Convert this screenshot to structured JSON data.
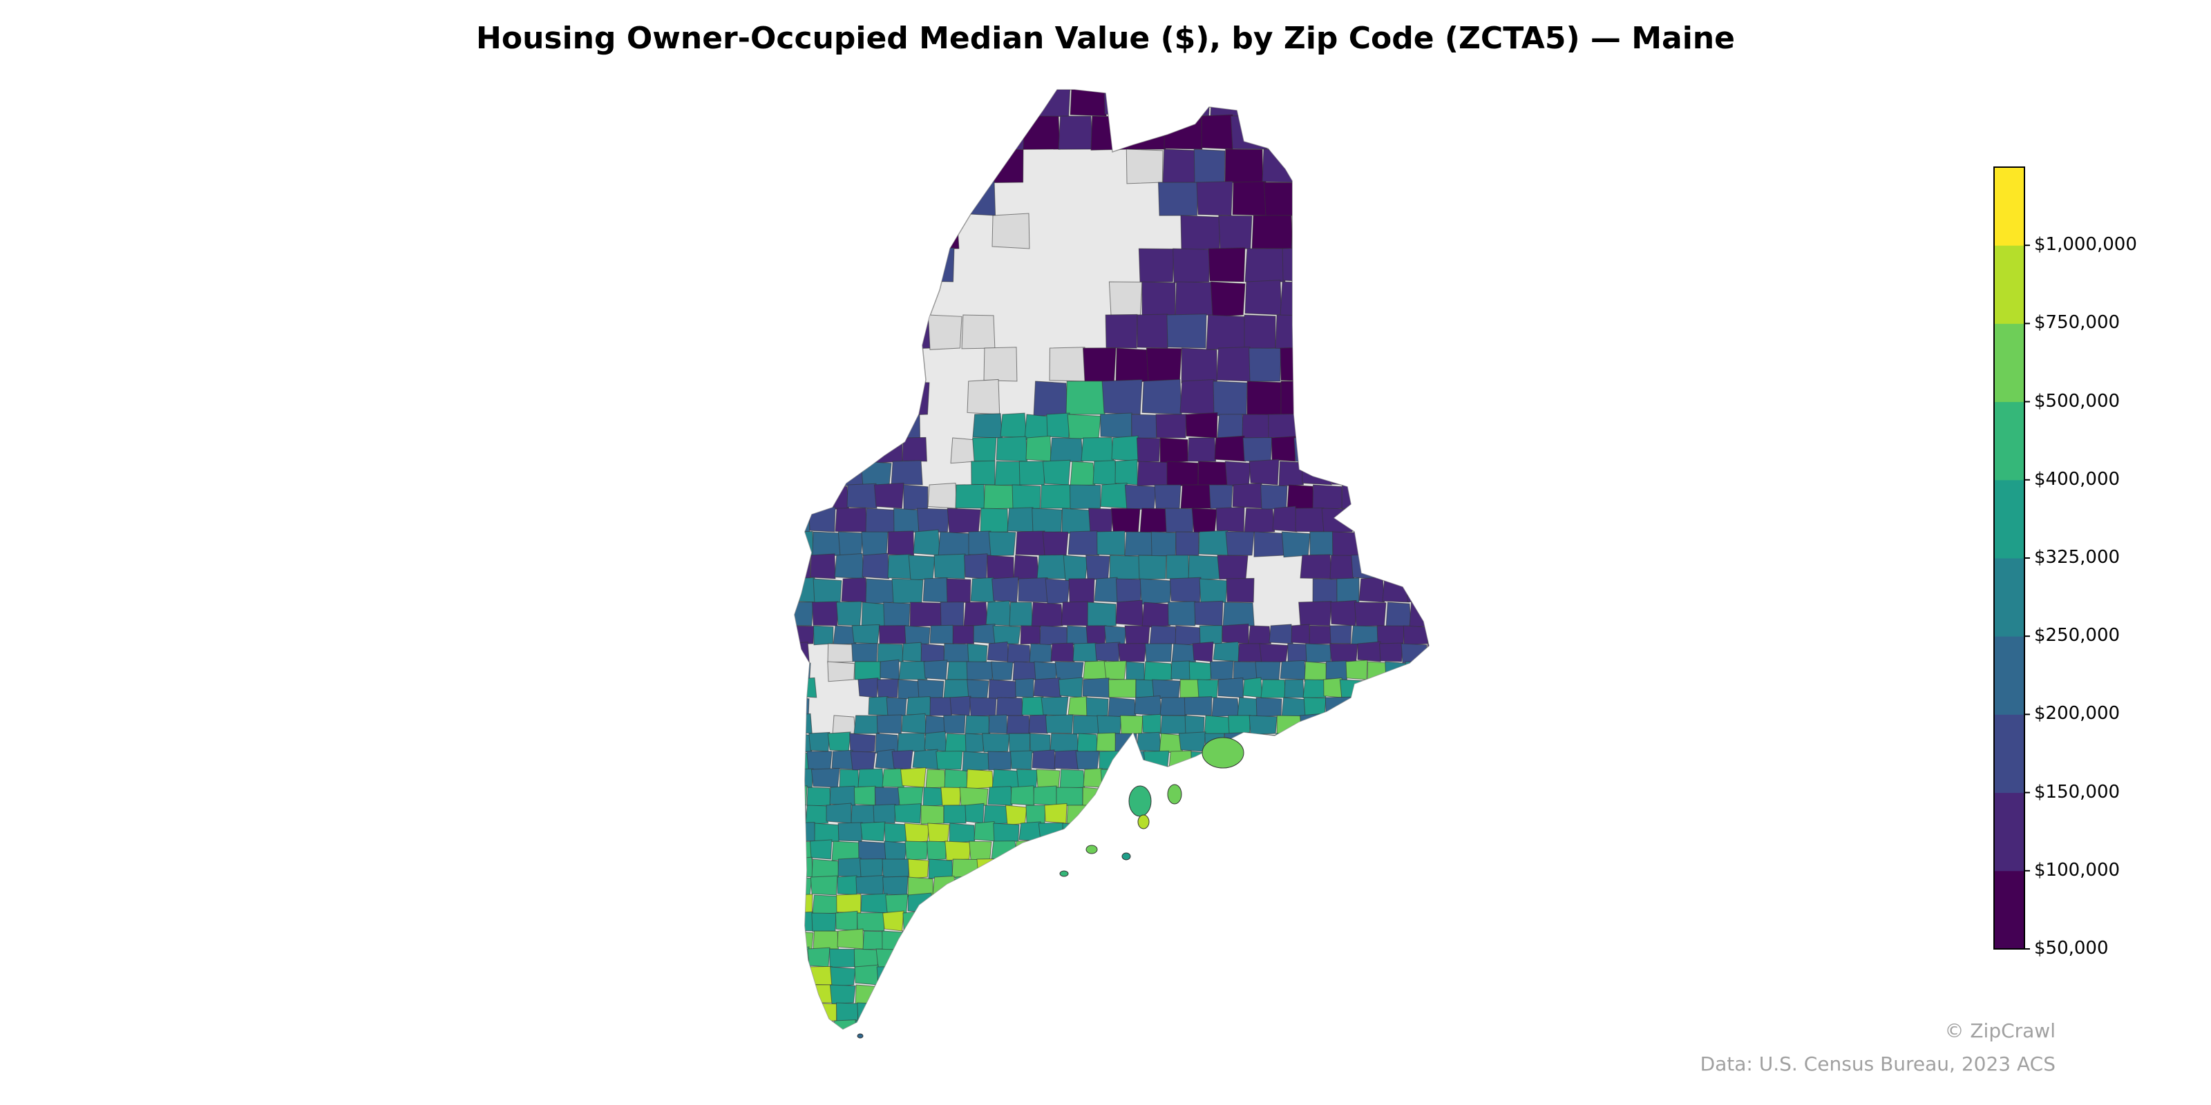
{
  "title": "Housing Owner-Occupied Median Value ($), by Zip Code (ZCTA5) — Maine",
  "credit": "© ZipCrawl",
  "source": "Data: U.S. Census Bureau, 2023 ACS",
  "colors": {
    "no_data": "#d9d9d9",
    "state_fill": "#e8e8e8",
    "border": "#333333"
  },
  "chart_data": {
    "type": "heatmap",
    "map_subject": "Maine",
    "legend": {
      "type": "stepped colorbar",
      "placement": "right",
      "ticks": [
        "$50,000",
        "$100,000",
        "$150,000",
        "$200,000",
        "$250,000",
        "$325,000",
        "$400,000",
        "$500,000",
        "$750,000",
        "$1,000,000"
      ],
      "bins": [
        {
          "min": 50000,
          "max": 100000,
          "color": "#440154"
        },
        {
          "min": 100000,
          "max": 150000,
          "color": "#482878"
        },
        {
          "min": 150000,
          "max": 200000,
          "color": "#3e4a89"
        },
        {
          "min": 200000,
          "max": 250000,
          "color": "#31688e"
        },
        {
          "min": 250000,
          "max": 325000,
          "color": "#26828e"
        },
        {
          "min": 325000,
          "max": 400000,
          "color": "#1f9e89"
        },
        {
          "min": 400000,
          "max": 500000,
          "color": "#35b779"
        },
        {
          "min": 500000,
          "max": 750000,
          "color": "#6ece58"
        },
        {
          "min": 750000,
          "max": 1000000,
          "color": "#b5de2b"
        },
        {
          "min": 1000000,
          "max": null,
          "color": "#fde725"
        }
      ]
    },
    "regions": [
      {
        "area": "far north (Aroostook)",
        "value_bin": "$50,000–$150,000"
      },
      {
        "area": "north woods interior",
        "value_bin": "no data"
      },
      {
        "area": "western mountains (Franklin/Oxford)",
        "value_bin": "$250,000–$400,000"
      },
      {
        "area": "central Maine",
        "value_bin": "$100,000–$250,000"
      },
      {
        "area": "Washington County coast",
        "value_bin": "$100,000–$200,000"
      },
      {
        "area": "Midcoast",
        "value_bin": "$250,000–$750,000"
      },
      {
        "area": "southern coast (York/Cumberland)",
        "value_bin": "$325,000–$1,000,000"
      }
    ]
  }
}
